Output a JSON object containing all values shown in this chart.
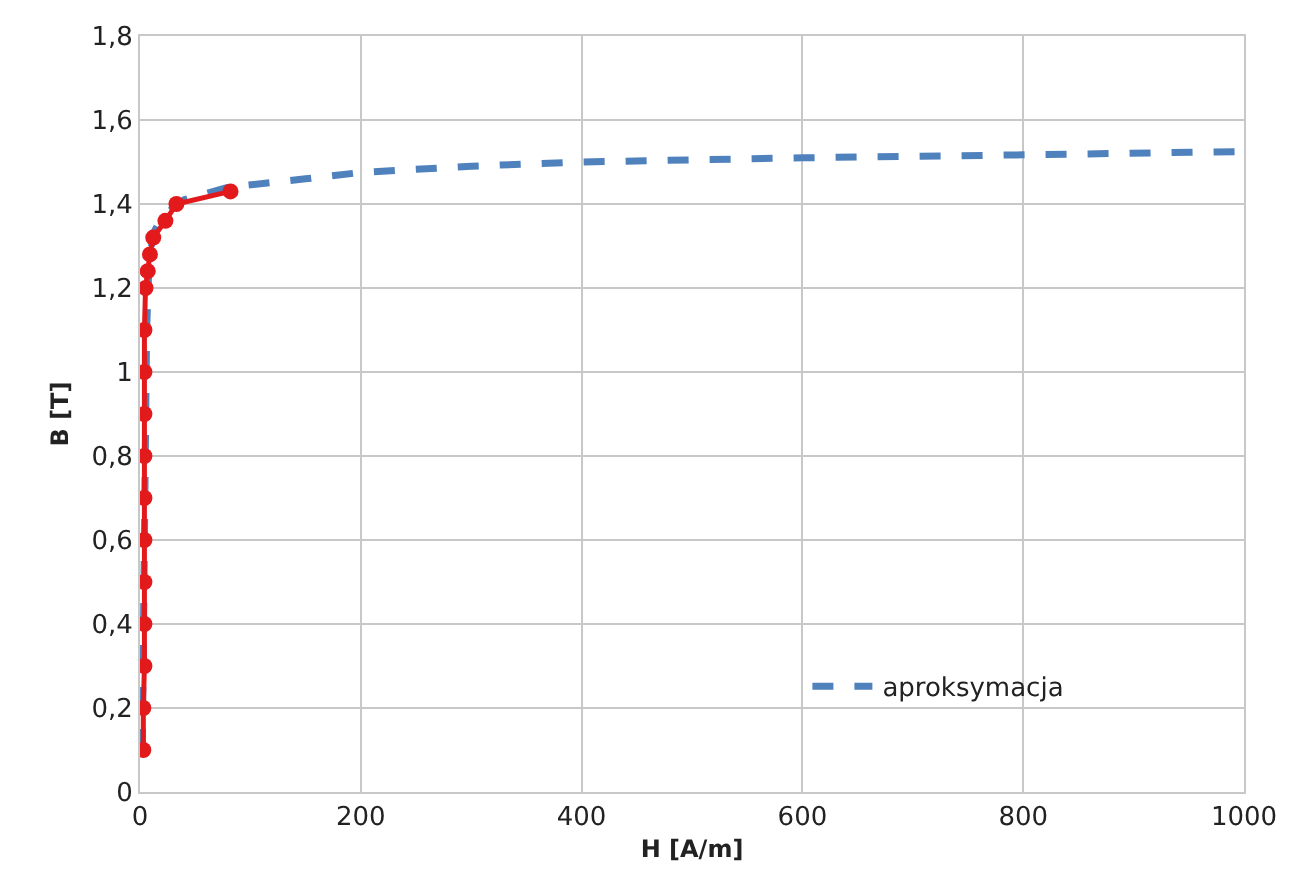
{
  "chart_data": {
    "type": "line",
    "xlabel": "H [A/m]",
    "ylabel": "B [T]",
    "xlim": [
      0,
      1000
    ],
    "xticks": [
      0,
      200,
      400,
      600,
      800,
      1000
    ],
    "ylim": [
      0,
      1.8
    ],
    "yticks": [
      {
        "value": 0,
        "label": "0"
      },
      {
        "value": 0.2,
        "label": "0,2"
      },
      {
        "value": 0.4,
        "label": "0,4"
      },
      {
        "value": 0.6,
        "label": "0,6"
      },
      {
        "value": 0.8,
        "label": "0,8"
      },
      {
        "value": 1,
        "label": "1"
      },
      {
        "value": 1.2,
        "label": "1,2"
      },
      {
        "value": 1.4,
        "label": "1,4"
      },
      {
        "value": 1.6,
        "label": "1,6"
      },
      {
        "value": 1.8,
        "label": "1,8"
      }
    ],
    "grid": true,
    "legend": "bottom right",
    "series": [
      {
        "color": "#e31a1c",
        "marker": "circle",
        "line_style": "solid",
        "x": [
          3,
          3,
          4,
          4,
          4,
          4,
          4,
          4,
          4,
          4,
          4,
          5,
          7,
          9,
          12,
          23,
          33,
          82
        ],
        "values": [
          0.1,
          0.2,
          0.3,
          0.4,
          0.5,
          0.6,
          0.7,
          0.8,
          0.9,
          1.0,
          1.1,
          1.2,
          1.24,
          1.28,
          1.32,
          1.36,
          1.4,
          1.43
        ]
      },
      {
        "name": "aproksymacja",
        "color": "#4f81bd",
        "marker": "none",
        "line_style": "dashed",
        "x": [
          2,
          4,
          6,
          8,
          12,
          20,
          40,
          80,
          150,
          200,
          300,
          400,
          600,
          800,
          1000
        ],
        "values": [
          0.1,
          0.6,
          1.1,
          1.25,
          1.33,
          1.37,
          1.41,
          1.44,
          1.46,
          1.475,
          1.49,
          1.5,
          1.51,
          1.517,
          1.525
        ]
      }
    ]
  }
}
